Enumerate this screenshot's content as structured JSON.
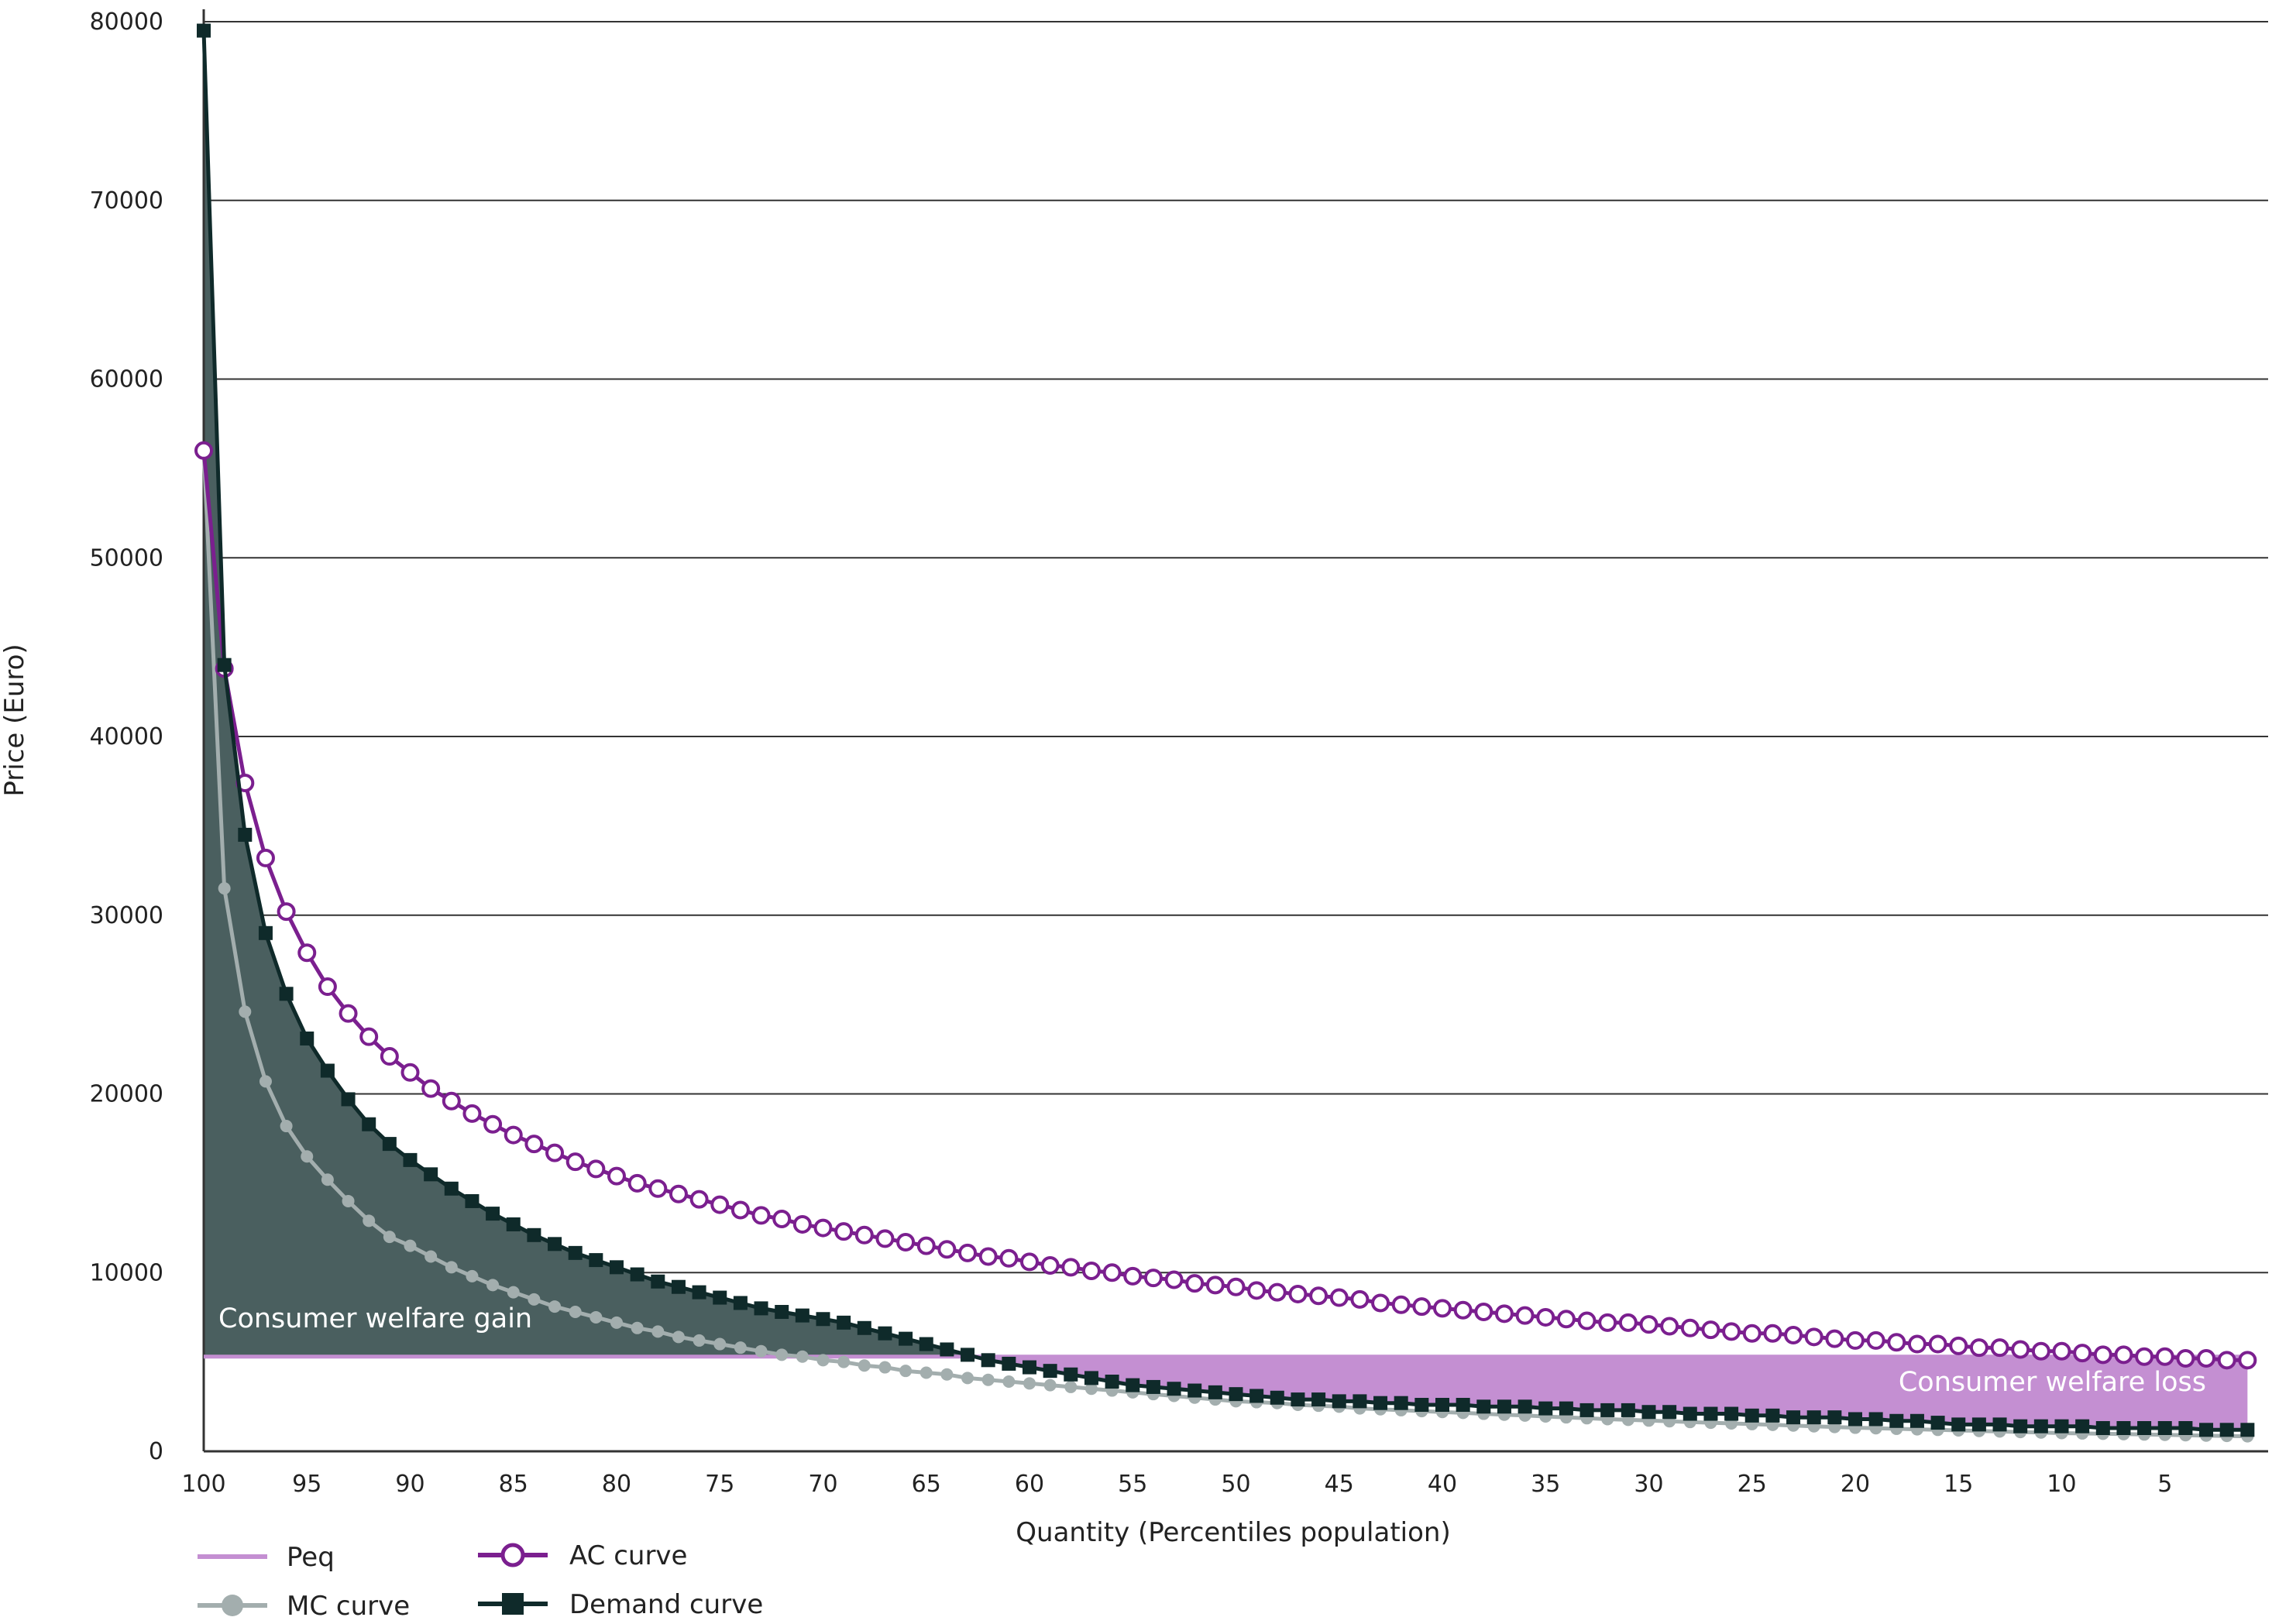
{
  "chart_data": {
    "type": "line",
    "title": "",
    "xlabel": "Quantity (Percentiles population)",
    "ylabel": "Price (Euro)",
    "x_reversed": true,
    "xlim": [
      100,
      0
    ],
    "ylim": [
      0,
      80000
    ],
    "x_ticks": [
      100,
      95,
      90,
      85,
      80,
      75,
      70,
      65,
      60,
      55,
      50,
      45,
      40,
      35,
      30,
      25,
      20,
      15,
      10,
      5
    ],
    "y_ticks": [
      0,
      10000,
      20000,
      30000,
      40000,
      50000,
      60000,
      70000,
      80000
    ],
    "grid": "horizontal",
    "legend_position": "bottom-left",
    "peq_value": 5300,
    "series": [
      {
        "name": "Peq",
        "color": "#c48fd2",
        "marker": "none",
        "x": [
          100,
          1
        ],
        "y": [
          5300,
          5300
        ]
      },
      {
        "name": "AC curve",
        "color": "#7b1f8f",
        "marker": "open-circle",
        "x": [
          100,
          99,
          98,
          97,
          96,
          95,
          94,
          93,
          92,
          91,
          90,
          89,
          88,
          87,
          86,
          85,
          84,
          83,
          82,
          81,
          80,
          79,
          78,
          77,
          76,
          75,
          74,
          73,
          72,
          71,
          70,
          69,
          68,
          67,
          66,
          65,
          64,
          63,
          62,
          61,
          60,
          59,
          58,
          57,
          56,
          55,
          54,
          53,
          52,
          51,
          50,
          49,
          48,
          47,
          46,
          45,
          44,
          43,
          42,
          41,
          40,
          39,
          38,
          37,
          36,
          35,
          34,
          33,
          32,
          31,
          30,
          29,
          28,
          27,
          26,
          25,
          24,
          23,
          22,
          21,
          20,
          19,
          18,
          17,
          16,
          15,
          14,
          13,
          12,
          11,
          10,
          9,
          8,
          7,
          6,
          5,
          4,
          3,
          2,
          1
        ],
        "y": [
          56000,
          43800,
          37400,
          33200,
          30200,
          27900,
          26000,
          24500,
          23200,
          22100,
          21200,
          20300,
          19600,
          18900,
          18300,
          17700,
          17200,
          16700,
          16200,
          15800,
          15400,
          15000,
          14700,
          14400,
          14100,
          13800,
          13500,
          13200,
          13000,
          12700,
          12500,
          12300,
          12100,
          11900,
          11700,
          11500,
          11300,
          11100,
          10900,
          10800,
          10600,
          10400,
          10300,
          10100,
          10000,
          9800,
          9700,
          9600,
          9400,
          9300,
          9200,
          9000,
          8900,
          8800,
          8700,
          8600,
          8500,
          8300,
          8200,
          8100,
          8000,
          7900,
          7800,
          7700,
          7600,
          7500,
          7400,
          7300,
          7200,
          7200,
          7100,
          7000,
          6900,
          6800,
          6700,
          6600,
          6600,
          6500,
          6400,
          6300,
          6200,
          6200,
          6100,
          6000,
          6000,
          5900,
          5800,
          5800,
          5700,
          5600,
          5600,
          5500,
          5400,
          5400,
          5300,
          5300,
          5200,
          5200,
          5100,
          5100
        ]
      },
      {
        "name": "MC curve",
        "color": "#a3aeae",
        "marker": "filled-circle",
        "x": [
          100,
          99,
          98,
          97,
          96,
          95,
          94,
          93,
          92,
          91,
          90,
          89,
          88,
          87,
          86,
          85,
          84,
          83,
          82,
          81,
          80,
          79,
          78,
          77,
          76,
          75,
          74,
          73,
          72,
          71,
          70,
          69,
          68,
          67,
          66,
          65,
          64,
          63,
          62,
          61,
          60,
          59,
          58,
          57,
          56,
          55,
          54,
          53,
          52,
          51,
          50,
          49,
          48,
          47,
          46,
          45,
          44,
          43,
          42,
          41,
          40,
          39,
          38,
          37,
          36,
          35,
          34,
          33,
          32,
          31,
          30,
          29,
          28,
          27,
          26,
          25,
          24,
          23,
          22,
          21,
          20,
          19,
          18,
          17,
          16,
          15,
          14,
          13,
          12,
          11,
          10,
          9,
          8,
          7,
          6,
          5,
          4,
          3,
          2,
          1
        ],
        "y": [
          56000,
          31500,
          24600,
          20700,
          18200,
          16500,
          15200,
          14000,
          12900,
          12000,
          11500,
          10900,
          10300,
          9800,
          9300,
          8900,
          8500,
          8100,
          7800,
          7500,
          7200,
          6900,
          6700,
          6400,
          6200,
          6000,
          5800,
          5600,
          5400,
          5300,
          5100,
          5000,
          4800,
          4700,
          4500,
          4400,
          4300,
          4100,
          4000,
          3900,
          3800,
          3700,
          3600,
          3500,
          3400,
          3300,
          3200,
          3100,
          3000,
          2900,
          2800,
          2750,
          2700,
          2600,
          2550,
          2500,
          2400,
          2350,
          2300,
          2250,
          2200,
          2150,
          2100,
          2050,
          2000,
          1950,
          1900,
          1850,
          1800,
          1760,
          1720,
          1680,
          1640,
          1600,
          1560,
          1520,
          1480,
          1440,
          1400,
          1360,
          1320,
          1290,
          1260,
          1230,
          1200,
          1170,
          1140,
          1110,
          1080,
          1050,
          1020,
          1000,
          980,
          960,
          940,
          920,
          900,
          880,
          860,
          840
        ]
      },
      {
        "name": "Demand curve",
        "color": "#0f2a2a",
        "marker": "filled-square",
        "x": [
          100,
          99,
          98,
          97,
          96,
          95,
          94,
          93,
          92,
          91,
          90,
          89,
          88,
          87,
          86,
          85,
          84,
          83,
          82,
          81,
          80,
          79,
          78,
          77,
          76,
          75,
          74,
          73,
          72,
          71,
          70,
          69,
          68,
          67,
          66,
          65,
          64,
          63,
          62,
          61,
          60,
          59,
          58,
          57,
          56,
          55,
          54,
          53,
          52,
          51,
          50,
          49,
          48,
          47,
          46,
          45,
          44,
          43,
          42,
          41,
          40,
          39,
          38,
          37,
          36,
          35,
          34,
          33,
          32,
          31,
          30,
          29,
          28,
          27,
          26,
          25,
          24,
          23,
          22,
          21,
          20,
          19,
          18,
          17,
          16,
          15,
          14,
          13,
          12,
          11,
          10,
          9,
          8,
          7,
          6,
          5,
          4,
          3,
          2,
          1
        ],
        "y": [
          79500,
          44000,
          34500,
          29000,
          25600,
          23100,
          21300,
          19700,
          18300,
          17200,
          16300,
          15500,
          14700,
          14000,
          13300,
          12700,
          12100,
          11600,
          11100,
          10700,
          10300,
          9900,
          9500,
          9200,
          8900,
          8600,
          8300,
          8000,
          7800,
          7600,
          7400,
          7200,
          6900,
          6600,
          6300,
          6000,
          5700,
          5400,
          5100,
          4900,
          4700,
          4500,
          4300,
          4100,
          3900,
          3700,
          3600,
          3500,
          3400,
          3300,
          3200,
          3100,
          3000,
          2900,
          2900,
          2800,
          2800,
          2700,
          2700,
          2600,
          2600,
          2600,
          2500,
          2500,
          2500,
          2400,
          2400,
          2300,
          2300,
          2300,
          2200,
          2200,
          2100,
          2100,
          2100,
          2000,
          2000,
          1900,
          1900,
          1900,
          1800,
          1800,
          1700,
          1700,
          1600,
          1500,
          1500,
          1500,
          1400,
          1400,
          1400,
          1400,
          1300,
          1300,
          1300,
          1300,
          1300,
          1200,
          1200,
          1200
        ]
      }
    ],
    "annotations": [
      {
        "text": "Consumer welfare gain",
        "color": "#4a5f5f"
      },
      {
        "text": "Consumer welfare loss",
        "color": "#c48fd2"
      }
    ],
    "legend": [
      {
        "label": "Peq",
        "series": "Peq"
      },
      {
        "label": "MC curve",
        "series": "MC curve"
      },
      {
        "label": "AC curve",
        "series": "AC curve"
      },
      {
        "label": "Demand curve",
        "series": "Demand curve"
      }
    ]
  }
}
